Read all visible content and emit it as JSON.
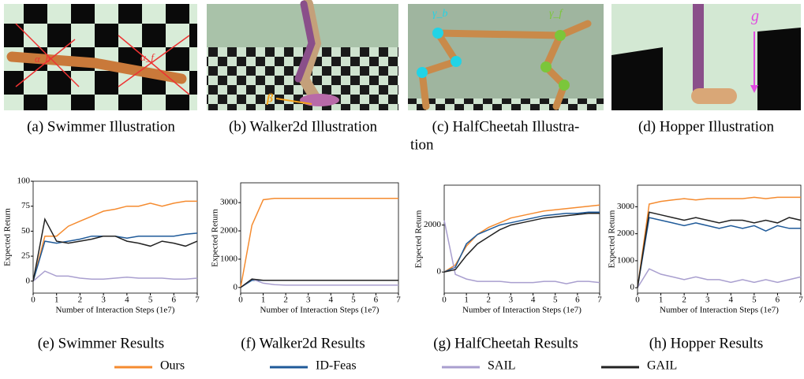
{
  "illustrations": [
    {
      "caption_lines": [
        "(a) Swimmer Illustration"
      ],
      "labels": [
        "α_b",
        "α_f"
      ]
    },
    {
      "caption_lines": [
        "(b) Walker2d Illustration"
      ],
      "labels": [
        "β"
      ]
    },
    {
      "caption_lines": [
        "(c) HalfCheetah Illustra-",
        "tion"
      ],
      "labels": [
        "γ_b",
        "γ_f"
      ]
    },
    {
      "caption_lines": [
        "(d) Hopper Illustration"
      ],
      "labels": [
        "g"
      ]
    }
  ],
  "chart_data": [
    {
      "type": "line",
      "caption": "(e) Swimmer Results",
      "xlabel": "Number of Interaction Steps (1e7)",
      "ylabel": "Expected Return",
      "x": [
        0,
        0.5,
        1,
        1.5,
        2,
        2.5,
        3,
        3.5,
        4,
        4.5,
        5,
        5.5,
        6,
        6.5,
        7
      ],
      "xlim": [
        0,
        7
      ],
      "xticks": [
        0,
        1,
        2,
        3,
        4,
        5,
        6,
        7
      ],
      "ylim": [
        -12,
        100
      ],
      "yticks": [
        0,
        25,
        50,
        75,
        100
      ],
      "series": [
        {
          "name": "Ours",
          "color": "#f58b2f",
          "values": [
            0,
            45,
            45,
            55,
            60,
            65,
            70,
            72,
            75,
            75,
            78,
            75,
            78,
            80,
            80
          ]
        },
        {
          "name": "ID-Feas",
          "color": "#1f5a99",
          "values": [
            0,
            40,
            38,
            40,
            42,
            45,
            45,
            45,
            43,
            45,
            45,
            45,
            45,
            47,
            48
          ]
        },
        {
          "name": "SAIL",
          "color": "#a99fcf",
          "values": [
            0,
            10,
            5,
            5,
            3,
            2,
            2,
            3,
            4,
            3,
            3,
            3,
            2,
            2,
            3
          ]
        },
        {
          "name": "GAIL",
          "color": "#222222",
          "values": [
            0,
            62,
            40,
            38,
            40,
            42,
            45,
            45,
            40,
            38,
            35,
            40,
            38,
            35,
            40
          ]
        }
      ]
    },
    {
      "type": "line",
      "caption": "(f) Walker2d Results",
      "xlabel": "Number of Interaction Steps (1e7)",
      "ylabel": "Expected Return",
      "x": [
        0,
        0.5,
        1,
        1.5,
        2,
        2.5,
        3,
        3.5,
        4,
        4.5,
        5,
        5.5,
        6,
        6.5,
        7
      ],
      "xlim": [
        0,
        7
      ],
      "xticks": [
        0,
        1,
        2,
        3,
        4,
        5,
        6,
        7
      ],
      "ylim": [
        -200,
        3700
      ],
      "yticks": [
        0,
        1000,
        2000,
        3000
      ],
      "series": [
        {
          "name": "Ours",
          "color": "#f58b2f",
          "values": [
            0,
            2200,
            3100,
            3150,
            3150,
            3150,
            3150,
            3150,
            3150,
            3150,
            3150,
            3150,
            3150,
            3150,
            3150
          ]
        },
        {
          "name": "ID-Feas",
          "color": "#1f5a99",
          "values": [
            0,
            250,
            250,
            250,
            250,
            250,
            250,
            250,
            250,
            250,
            250,
            250,
            250,
            250,
            250
          ]
        },
        {
          "name": "SAIL",
          "color": "#a99fcf",
          "values": [
            0,
            300,
            150,
            100,
            80,
            80,
            80,
            80,
            80,
            80,
            80,
            80,
            80,
            80,
            80
          ]
        },
        {
          "name": "GAIL",
          "color": "#222222",
          "values": [
            0,
            300,
            250,
            250,
            250,
            250,
            250,
            250,
            250,
            250,
            250,
            250,
            250,
            250,
            250
          ]
        }
      ]
    },
    {
      "type": "line",
      "caption": "(g) HalfCheetah Results",
      "xlabel": "Number of Interaction Steps (1e7)",
      "ylabel": "Expected Return",
      "x": [
        0,
        0.5,
        1,
        1.5,
        2,
        2.5,
        3,
        3.5,
        4,
        4.5,
        5,
        5.5,
        6,
        6.5,
        7
      ],
      "xlim": [
        0,
        7
      ],
      "xticks": [
        0,
        1,
        2,
        3,
        4,
        5,
        6,
        7
      ],
      "ylim": [
        -900,
        3700
      ],
      "yticks": [
        0,
        2000
      ],
      "series": [
        {
          "name": "Ours",
          "color": "#f58b2f",
          "values": [
            0,
            300,
            1100,
            1600,
            1900,
            2100,
            2300,
            2400,
            2500,
            2600,
            2650,
            2700,
            2750,
            2800,
            2850
          ]
        },
        {
          "name": "ID-Feas",
          "color": "#1f5a99",
          "values": [
            0,
            200,
            1200,
            1600,
            1800,
            2000,
            2100,
            2200,
            2300,
            2400,
            2450,
            2500,
            2500,
            2550,
            2550
          ]
        },
        {
          "name": "SAIL",
          "color": "#a99fcf",
          "values": [
            2200,
            -100,
            -300,
            -400,
            -400,
            -400,
            -450,
            -450,
            -450,
            -400,
            -400,
            -500,
            -400,
            -400,
            -450
          ]
        },
        {
          "name": "GAIL",
          "color": "#222222",
          "values": [
            0,
            100,
            700,
            1200,
            1500,
            1800,
            2000,
            2100,
            2200,
            2300,
            2350,
            2400,
            2450,
            2500,
            2500
          ]
        }
      ]
    },
    {
      "type": "line",
      "caption": "(h) Hopper Results",
      "xlabel": "Number of Interaction Steps (1e7)",
      "ylabel": "Expected Return",
      "x": [
        0,
        0.5,
        1,
        1.5,
        2,
        2.5,
        3,
        3.5,
        4,
        4.5,
        5,
        5.5,
        6,
        6.5,
        7
      ],
      "xlim": [
        0,
        7
      ],
      "xticks": [
        0,
        1,
        2,
        3,
        4,
        5,
        6,
        7
      ],
      "ylim": [
        -200,
        3800
      ],
      "yticks": [
        0,
        1000,
        2000,
        3000
      ],
      "series": [
        {
          "name": "Ours",
          "color": "#f58b2f",
          "values": [
            0,
            3100,
            3200,
            3250,
            3300,
            3250,
            3300,
            3300,
            3300,
            3300,
            3350,
            3300,
            3350,
            3350,
            3350
          ]
        },
        {
          "name": "ID-Feas",
          "color": "#1f5a99",
          "values": [
            0,
            2600,
            2500,
            2400,
            2300,
            2400,
            2300,
            2200,
            2300,
            2200,
            2300,
            2100,
            2300,
            2200,
            2200
          ]
        },
        {
          "name": "SAIL",
          "color": "#a99fcf",
          "values": [
            0,
            700,
            500,
            400,
            300,
            400,
            300,
            300,
            200,
            300,
            200,
            300,
            200,
            300,
            400
          ]
        },
        {
          "name": "GAIL",
          "color": "#222222",
          "values": [
            0,
            2800,
            2700,
            2600,
            2500,
            2600,
            2500,
            2400,
            2500,
            2500,
            2400,
            2500,
            2400,
            2600,
            2500
          ]
        }
      ]
    }
  ]
}
